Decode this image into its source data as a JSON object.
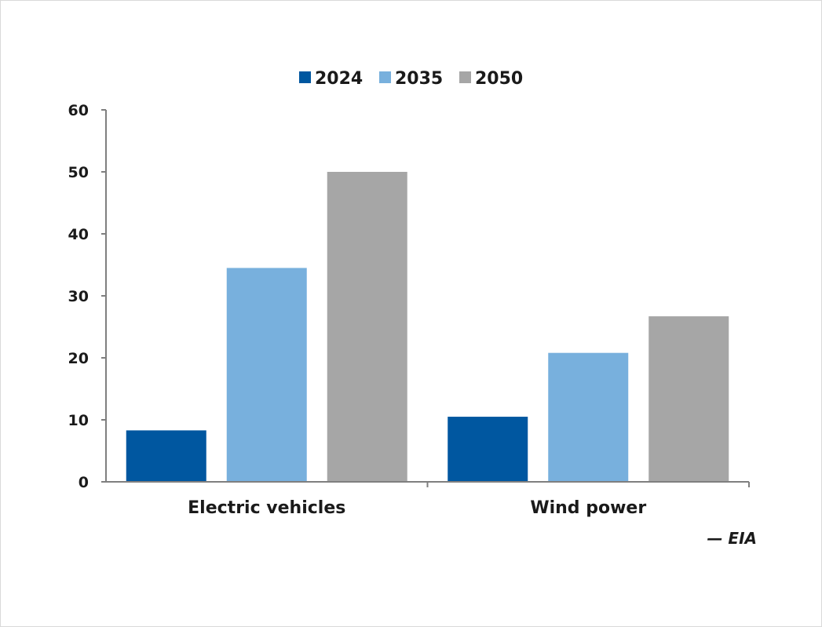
{
  "chart_data": {
    "type": "bar",
    "categories": [
      "Electric vehicles",
      "Wind power"
    ],
    "series": [
      {
        "name": "2024",
        "color": "#0057a0",
        "values": [
          8.3,
          10.5
        ]
      },
      {
        "name": "2035",
        "color": "#78b0dd",
        "values": [
          34.5,
          20.8
        ]
      },
      {
        "name": "2050",
        "color": "#a6a6a6",
        "values": [
          50.0,
          26.7
        ]
      }
    ],
    "ylim": [
      0,
      60
    ],
    "yticks": [
      "0",
      "10",
      "20",
      "30",
      "40",
      "50",
      "60"
    ],
    "xlabel": "",
    "ylabel": "",
    "grid": false,
    "legend_position": "top-center",
    "source": "— EIA"
  }
}
